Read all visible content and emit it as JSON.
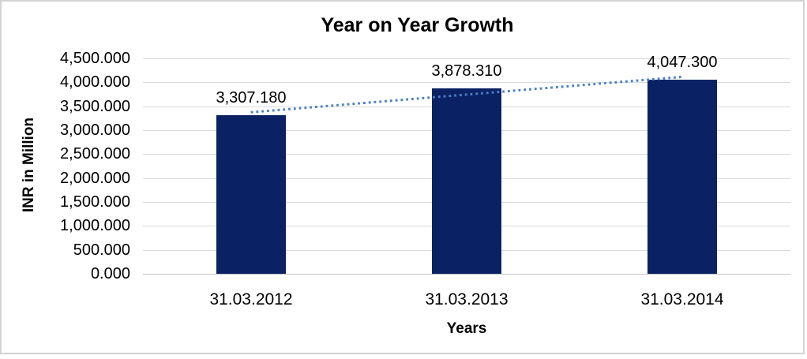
{
  "chart_data": {
    "type": "bar",
    "title": "Year on Year Growth",
    "xlabel": "Years",
    "ylabel": "INR in Million",
    "categories": [
      "31.03.2012",
      "31.03.2013",
      "31.03.2014"
    ],
    "values": [
      3307.18,
      3878.31,
      4047.3
    ],
    "value_labels": [
      "3,307.180",
      "3,878.310",
      "4,047.300"
    ],
    "y_tick_labels": [
      "4,500.000",
      "4,000.000",
      "3,500.000",
      "3,000.000",
      "2,500.000",
      "2,000.000",
      "1,500.000",
      "1,000.000",
      "500.000",
      "0.000"
    ],
    "ylim": [
      0,
      4500
    ],
    "grid": true,
    "legend": "none",
    "trendline": "linear-dotted",
    "colors": {
      "bar": "#0A2264",
      "trendline": "#4A80C4",
      "gridline": "#D9D9D9",
      "text": "#000000",
      "border": "#D3D3D3"
    }
  }
}
